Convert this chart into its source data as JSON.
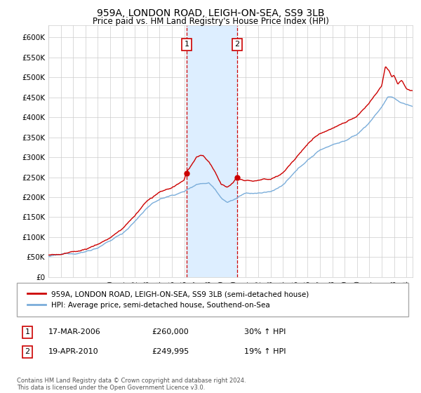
{
  "title": "959A, LONDON ROAD, LEIGH-ON-SEA, SS9 3LB",
  "subtitle": "Price paid vs. HM Land Registry's House Price Index (HPI)",
  "ylabel_ticks": [
    "£0",
    "£50K",
    "£100K",
    "£150K",
    "£200K",
    "£250K",
    "£300K",
    "£350K",
    "£400K",
    "£450K",
    "£500K",
    "£550K",
    "£600K"
  ],
  "ytick_values": [
    0,
    50000,
    100000,
    150000,
    200000,
    250000,
    300000,
    350000,
    400000,
    450000,
    500000,
    550000,
    600000
  ],
  "ylim": [
    0,
    630000
  ],
  "xlim_left": 1995,
  "xlim_right": 2024.5,
  "sale1_date_num": 2006.21,
  "sale1_price": 260000,
  "sale2_date_num": 2010.3,
  "sale2_price": 249995,
  "legend_label_red": "959A, LONDON ROAD, LEIGH-ON-SEA, SS9 3LB (semi-detached house)",
  "legend_label_blue": "HPI: Average price, semi-detached house, Southend-on-Sea",
  "annotation1_label": "1",
  "annotation1_date": "17-MAR-2006",
  "annotation1_price": "£260,000",
  "annotation1_pct": "30% ↑ HPI",
  "annotation2_label": "2",
  "annotation2_date": "19-APR-2010",
  "annotation2_price": "£249,995",
  "annotation2_pct": "19% ↑ HPI",
  "footnote": "Contains HM Land Registry data © Crown copyright and database right 2024.\nThis data is licensed under the Open Government Licence v3.0.",
  "red_color": "#cc0000",
  "blue_color": "#7aadda",
  "shade_color": "#ddeeff",
  "grid_color": "#cccccc",
  "background_color": "#ffffff",
  "title_fontsize": 10,
  "subtitle_fontsize": 8.5
}
